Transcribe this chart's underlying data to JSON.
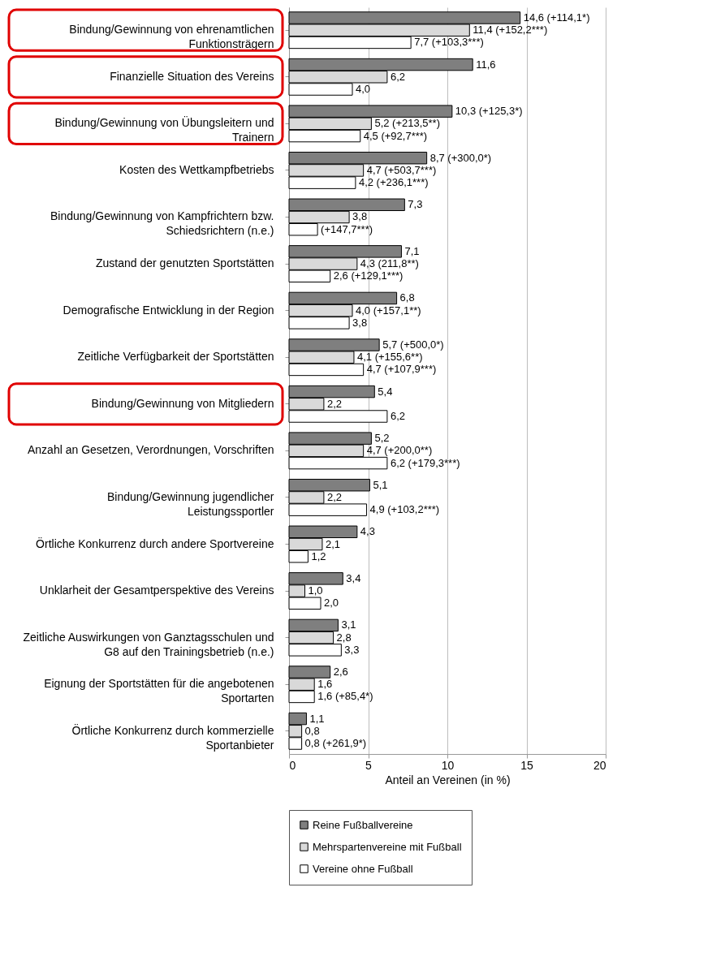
{
  "chart_data": {
    "type": "bar",
    "orientation": "horizontal",
    "xlabel": "Anteil an Vereinen (in %)",
    "xlim": [
      0,
      20
    ],
    "xticks": [
      0,
      5,
      10,
      15,
      20
    ],
    "grid": "x",
    "legend": "bottom",
    "annotations": [
      {
        "text": "(+147,7***)",
        "x": 1.8,
        "y": "Bindung/Gewinnung von Kampfrichtern bzw. Schiedsrichtern (n.e.)"
      }
    ],
    "categories": [
      "Bindung/Gewinnung von ehrenamtlichen Funktionsträgern",
      "Finanzielle Situation des Vereins",
      "Bindung/Gewinnung von Übungsleitern und Trainern",
      "Kosten des Wettkampfbetriebs",
      "Bindung/Gewinnung von Kampfrichtern bzw. Schiedsrichtern (n.e.)",
      "Zustand der genutzten Sportstätten",
      "Demografische Entwicklung in der Region",
      "Zeitliche Verfügbarkeit der Sportstätten",
      "Bindung/Gewinnung von Mitgliedern",
      "Anzahl an Gesetzen, Verordnungen, Vorschriften",
      "Bindung/Gewinnung jugendlicher Leistungssportler",
      "Örtliche Konkurrenz durch andere Sportvereine",
      "Unklarheit der Gesamtperspektive des Vereins",
      "Zeitliche Auswirkungen von Ganztagsschulen und G8 auf den Trainingsbetrieb (n.e.)",
      "Eignung der Sportstätten für die angebotenen Sportarten",
      "Örtliche Konkurrenz durch kommerzielle Sportanbieter"
    ],
    "series": [
      {
        "name": "Reine Fußballvereine",
        "color": "#7f7f7f",
        "values": [
          14.6,
          11.6,
          10.3,
          8.7,
          7.3,
          7.1,
          6.8,
          5.7,
          5.4,
          5.2,
          5.1,
          4.3,
          3.4,
          3.1,
          2.6,
          1.1
        ],
        "value_labels": [
          "14,6 (+114,1*)",
          "11,6",
          "10,3 (+125,3*)",
          "8,7 (+300,0*)",
          "7,3",
          "7,1",
          "6,8",
          "5,7 (+500,0*)",
          "5,4",
          "5,2",
          "5,1",
          "4,3",
          "3,4",
          "3,1",
          "2,6",
          "1,1"
        ]
      },
      {
        "name": "Mehrspartenvereine mit Fußball",
        "color": "#d9d9d9",
        "values": [
          11.4,
          6.2,
          5.2,
          4.7,
          3.8,
          4.3,
          4.0,
          4.1,
          2.2,
          4.7,
          2.2,
          2.1,
          1.0,
          2.8,
          1.6,
          0.8
        ],
        "value_labels": [
          "11,4 (+152,2***)",
          "6,2",
          "5,2 (+213,5**)",
          "4,7 (+503,7***)",
          "3,8",
          "4,3 (211,8**)",
          "4,0 (+157,1**)",
          "4,1 (+155,6**)",
          "2,2",
          "4,7 (+200,0**)",
          "2,2",
          "2,1",
          "1,0",
          "2,8",
          "1,6",
          "0,8"
        ]
      },
      {
        "name": "Vereine ohne Fußball",
        "color": "#ffffff",
        "values": [
          7.7,
          4.0,
          4.5,
          4.2,
          1.8,
          2.6,
          3.8,
          4.7,
          6.2,
          6.2,
          4.9,
          1.2,
          2.0,
          3.3,
          1.6,
          0.8
        ],
        "value_labels": [
          "7,7 (+103,3***)",
          "4,0",
          "4,5 (+92,7***)",
          "4,2 (+236,1***)",
          null,
          "2,6 (+129,1***)",
          "3,8",
          "4,7 (+107,9***)",
          "6,2",
          "6,2 (+179,3***)",
          "4,9 (+103,2***)",
          "1,2",
          "2,0",
          "3,3",
          "1,6 (+85,4*)",
          "0,8 (+261,9*)"
        ]
      }
    ]
  }
}
